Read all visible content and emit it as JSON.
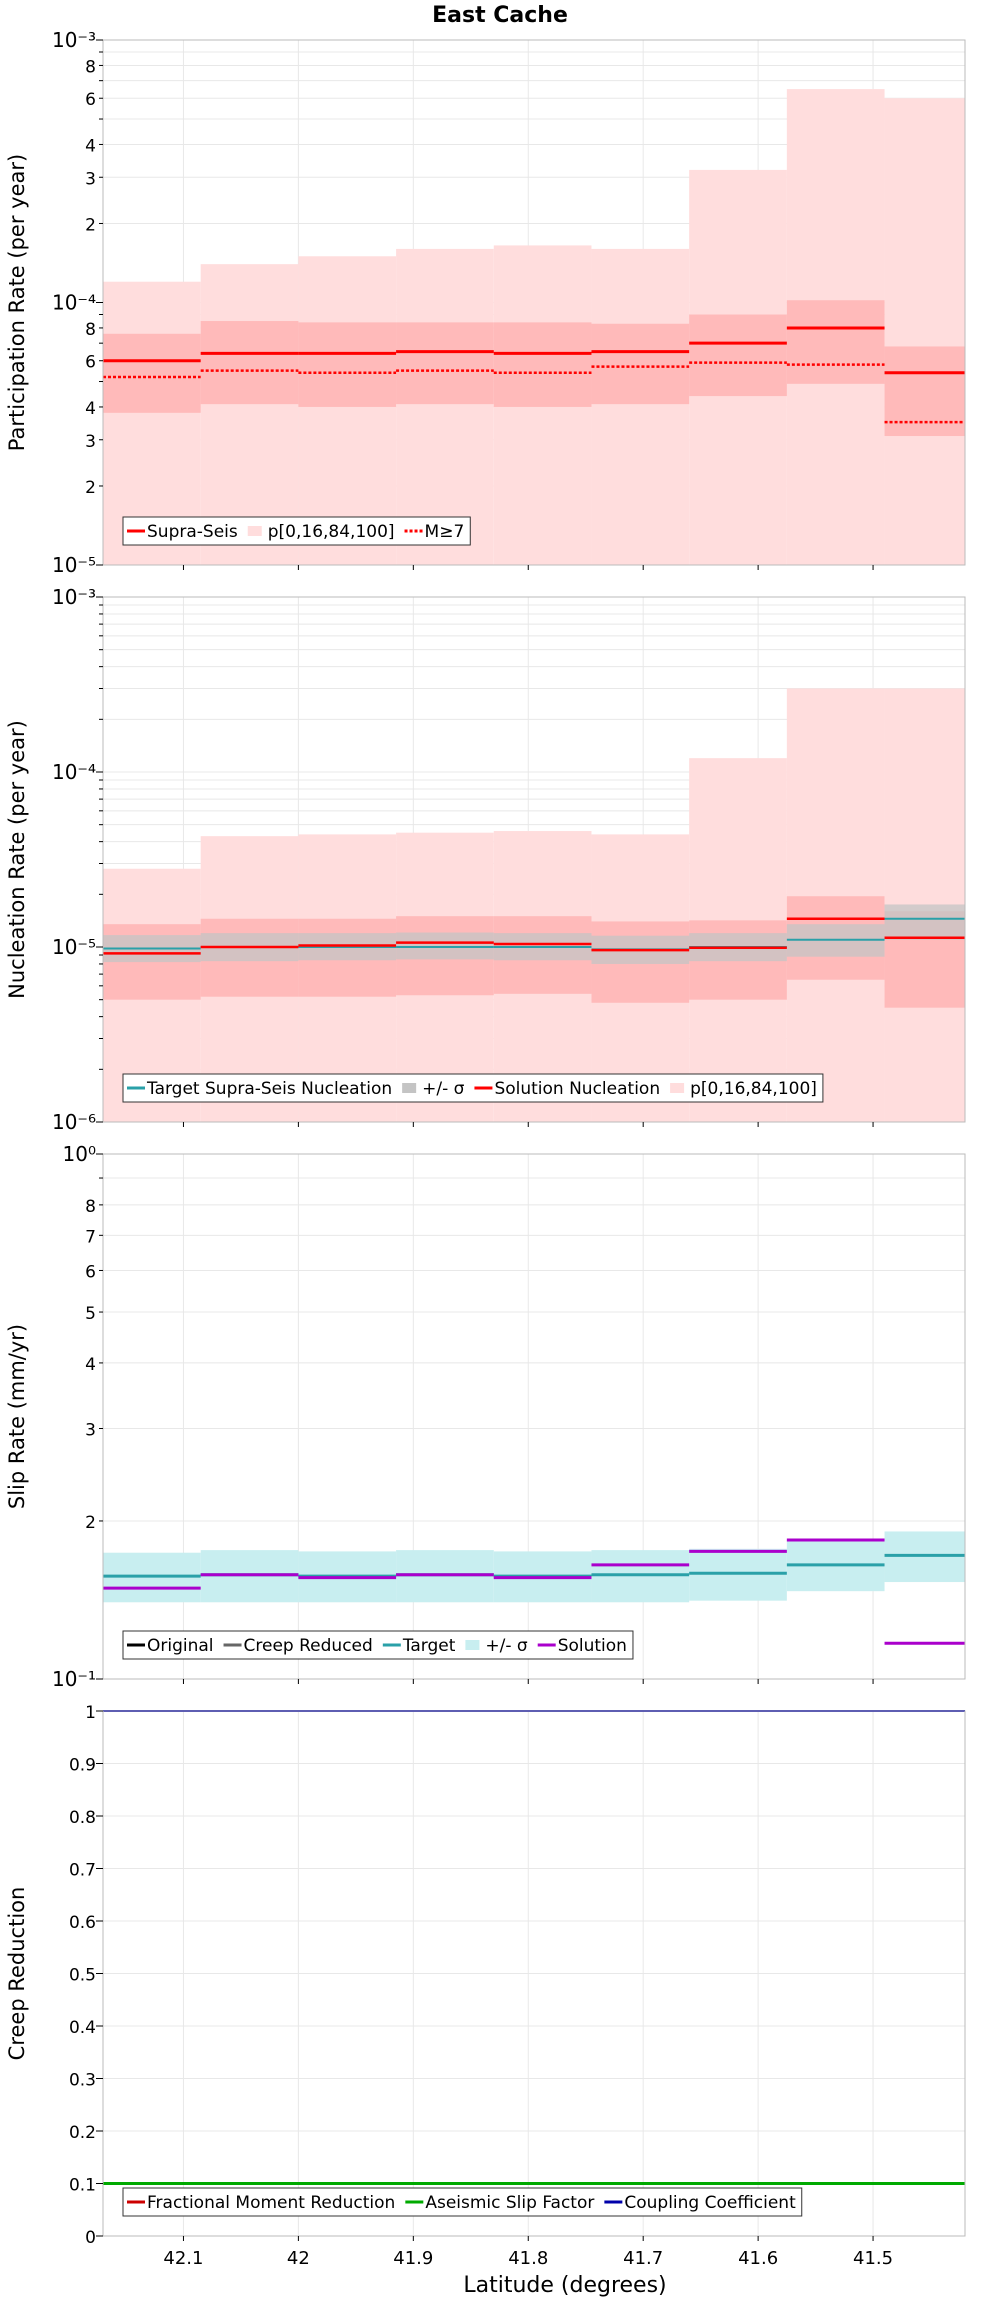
{
  "title": "East Cache",
  "xlabel": "Latitude (degrees)",
  "x_tick_labels": [
    "42.1",
    "42",
    "41.9",
    "41.8",
    "41.7",
    "41.6",
    "41.5"
  ],
  "colors": {
    "supra_seis": "#ff0000",
    "band_outer": "#ffdddd",
    "band_inner": "#ffbaba",
    "target": "#2aa0a8",
    "target_band": "#c8eef0",
    "target_band_nuc": "#c4c4c4",
    "solution_slip": "#aa00cc",
    "original": "#000000",
    "creep_reduced": "#666666",
    "fractional_moment": "#cc0000",
    "aseismic": "#00aa00",
    "coupling": "#0000aa",
    "grid": "#e8e8e8"
  },
  "chart_data": [
    {
      "type": "line",
      "title": "East Cache",
      "xlabel": "",
      "ylabel": "Participation Rate (per year)",
      "yscale": "log",
      "ylim": [
        1e-05,
        0.001
      ],
      "xlim": [
        42.17,
        41.42
      ],
      "grid": true,
      "legend_position": "bottom-left",
      "y_tick_labels": [
        "10⁻⁵",
        "2",
        "3",
        "4",
        "6",
        "8",
        "10⁻⁴",
        "2",
        "3",
        "4",
        "6",
        "8",
        "10⁻³"
      ],
      "legend": [
        "Supra-Seis",
        "p[0,16,84,100]",
        "M≥7"
      ],
      "bins": [
        [
          42.17,
          42.085
        ],
        [
          42.085,
          42.0
        ],
        [
          42.0,
          41.915
        ],
        [
          41.915,
          41.83
        ],
        [
          41.83,
          41.745
        ],
        [
          41.745,
          41.66
        ],
        [
          41.66,
          41.575
        ],
        [
          41.575,
          41.49
        ],
        [
          41.49,
          41.42
        ]
      ],
      "series": [
        {
          "name": "Supra-Seis",
          "values": [
            6e-05,
            6.4e-05,
            6.4e-05,
            6.5e-05,
            6.4e-05,
            6.5e-05,
            7e-05,
            8e-05,
            5.4e-05
          ]
        },
        {
          "name": "M≥7",
          "values": [
            5.2e-05,
            5.5e-05,
            5.4e-05,
            5.5e-05,
            5.4e-05,
            5.7e-05,
            5.9e-05,
            5.8e-05,
            3.5e-05
          ]
        }
      ],
      "band_p0_p100": [
        [
          1e-05,
          0.00012
        ],
        [
          1e-05,
          0.00014
        ],
        [
          1e-05,
          0.00015
        ],
        [
          1e-05,
          0.00016
        ],
        [
          1e-05,
          0.000165
        ],
        [
          1e-05,
          0.00016
        ],
        [
          1e-05,
          0.00032
        ],
        [
          1e-05,
          0.00065
        ],
        [
          1e-05,
          0.0006
        ]
      ],
      "band_p16_p84": [
        [
          3.8e-05,
          7.6e-05
        ],
        [
          4.1e-05,
          8.5e-05
        ],
        [
          4e-05,
          8.4e-05
        ],
        [
          4.1e-05,
          8.4e-05
        ],
        [
          4e-05,
          8.4e-05
        ],
        [
          4.1e-05,
          8.3e-05
        ],
        [
          4.4e-05,
          9e-05
        ],
        [
          4.9e-05,
          0.000102
        ],
        [
          3.1e-05,
          6.8e-05
        ]
      ]
    },
    {
      "type": "line",
      "title": "",
      "xlabel": "",
      "ylabel": "Nucleation Rate (per year)",
      "yscale": "log",
      "ylim": [
        1e-06,
        0.001
      ],
      "xlim": [
        42.17,
        41.42
      ],
      "grid": true,
      "legend_position": "bottom-left",
      "y_tick_labels": [
        "10⁻⁶",
        "10⁻⁵",
        "10⁻⁴",
        "10⁻³"
      ],
      "legend": [
        "Target Supra-Seis Nucleation",
        "+/- σ",
        "Solution Nucleation",
        "p[0,16,84,100]"
      ],
      "bins": [
        [
          42.17,
          42.085
        ],
        [
          42.085,
          42.0
        ],
        [
          42.0,
          41.915
        ],
        [
          41.915,
          41.83
        ],
        [
          41.83,
          41.745
        ],
        [
          41.745,
          41.66
        ],
        [
          41.66,
          41.575
        ],
        [
          41.575,
          41.49
        ],
        [
          41.49,
          41.42
        ]
      ],
      "series": [
        {
          "name": "Target Supra-Seis Nucleation",
          "values": [
            9.8e-06,
            1e-05,
            1e-05,
            1e-05,
            1e-05,
            9.7e-06,
            1e-05,
            1.1e-05,
            1.45e-05
          ]
        },
        {
          "name": "Solution Nucleation",
          "values": [
            9.2e-06,
            1e-05,
            1.02e-05,
            1.06e-05,
            1.04e-05,
            9.6e-06,
            9.9e-06,
            1.45e-05,
            1.13e-05
          ]
        }
      ],
      "target_sigma": [
        [
          8.2e-06,
          1.17e-05
        ],
        [
          8.3e-06,
          1.2e-05
        ],
        [
          8.4e-06,
          1.2e-05
        ],
        [
          8.5e-06,
          1.21e-05
        ],
        [
          8.4e-06,
          1.2e-05
        ],
        [
          8e-06,
          1.16e-05
        ],
        [
          8.3e-06,
          1.2e-05
        ],
        [
          8.8e-06,
          1.35e-05
        ],
        [
          1.1e-05,
          1.75e-05
        ]
      ],
      "band_p0_p100": [
        [
          1e-06,
          2.8e-05
        ],
        [
          1e-06,
          4.3e-05
        ],
        [
          1e-06,
          4.4e-05
        ],
        [
          1e-06,
          4.5e-05
        ],
        [
          1e-06,
          4.6e-05
        ],
        [
          1e-06,
          4.4e-05
        ],
        [
          1e-06,
          0.00012
        ],
        [
          1e-06,
          0.0003
        ],
        [
          1e-06,
          0.0003
        ]
      ],
      "band_p16_p84": [
        [
          5e-06,
          1.35e-05
        ],
        [
          5.2e-06,
          1.45e-05
        ],
        [
          5.2e-06,
          1.45e-05
        ],
        [
          5.3e-06,
          1.5e-05
        ],
        [
          5.4e-06,
          1.5e-05
        ],
        [
          4.8e-06,
          1.4e-05
        ],
        [
          5e-06,
          1.42e-05
        ],
        [
          6.5e-06,
          1.95e-05
        ],
        [
          4.5e-06,
          1.6e-05
        ]
      ]
    },
    {
      "type": "line",
      "title": "",
      "xlabel": "",
      "ylabel": "Slip Rate (mm/yr)",
      "yscale": "log",
      "ylim": [
        0.1,
        1.0
      ],
      "xlim": [
        42.17,
        41.42
      ],
      "grid": true,
      "legend_position": "bottom-left",
      "y_tick_labels": [
        "10⁻¹",
        "2",
        "3",
        "4",
        "5",
        "6",
        "7",
        "8",
        "10⁰"
      ],
      "legend": [
        "Original",
        "Creep Reduced",
        "Target",
        "+/- σ",
        "Solution"
      ],
      "bins": [
        [
          42.17,
          42.085
        ],
        [
          42.085,
          42.0
        ],
        [
          42.0,
          41.915
        ],
        [
          41.915,
          41.83
        ],
        [
          41.83,
          41.745
        ],
        [
          41.745,
          41.66
        ],
        [
          41.66,
          41.575
        ],
        [
          41.575,
          41.49
        ],
        [
          41.49,
          41.42
        ]
      ],
      "series": [
        {
          "name": "Target",
          "values": [
            0.157,
            0.158,
            0.157,
            0.158,
            0.157,
            0.158,
            0.159,
            0.165,
            0.172
          ]
        },
        {
          "name": "Solution",
          "values": [
            0.149,
            0.158,
            0.156,
            0.158,
            0.156,
            0.165,
            0.175,
            0.184,
            0.117
          ]
        }
      ],
      "target_sigma": [
        [
          0.14,
          0.174
        ],
        [
          0.14,
          0.176
        ],
        [
          0.14,
          0.175
        ],
        [
          0.14,
          0.176
        ],
        [
          0.14,
          0.175
        ],
        [
          0.14,
          0.176
        ],
        [
          0.141,
          0.177
        ],
        [
          0.147,
          0.184
        ],
        [
          0.153,
          0.191
        ]
      ]
    },
    {
      "type": "line",
      "title": "",
      "xlabel": "Latitude (degrees)",
      "ylabel": "Creep Reduction",
      "yscale": "linear",
      "ylim": [
        0,
        1
      ],
      "xlim": [
        42.17,
        41.42
      ],
      "grid": true,
      "legend_position": "bottom-left",
      "y_tick_labels": [
        "0",
        "0.1",
        "0.2",
        "0.3",
        "0.4",
        "0.5",
        "0.6",
        "0.7",
        "0.8",
        "0.9",
        "1"
      ],
      "legend": [
        "Fractional Moment Reduction",
        "Aseismic Slip Factor",
        "Coupling Coefficient"
      ],
      "series": [
        {
          "name": "Fractional Moment Reduction",
          "values": [
            0.1,
            0.1
          ]
        },
        {
          "name": "Aseismic Slip Factor",
          "values": [
            0.1,
            0.1
          ]
        },
        {
          "name": "Coupling Coefficient",
          "values": [
            1.0,
            1.0
          ]
        }
      ]
    }
  ]
}
